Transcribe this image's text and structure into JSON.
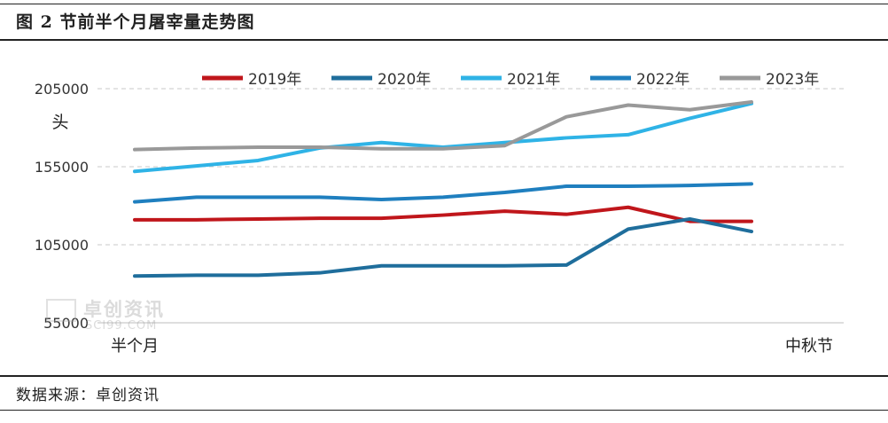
{
  "figure_title": "图 2 节前半个月屠宰量走势图",
  "source_note": "数据来源：卓创资讯",
  "watermark": {
    "main": "卓创资讯",
    "sub": "SCI99.COM"
  },
  "chart_data": {
    "type": "line",
    "title": "",
    "unit_label": "头",
    "x_start_label": "半个月",
    "x_end_label": "中秋节",
    "x": [
      1,
      2,
      3,
      4,
      5,
      6,
      7,
      8,
      9,
      10,
      11
    ],
    "ylim": [
      55000,
      205000
    ],
    "yticks": [
      55000,
      105000,
      155000,
      205000
    ],
    "grid": true,
    "legend_position": "top",
    "series": [
      {
        "name": "2019年",
        "color": "#c0161b",
        "values": [
          121000,
          121000,
          121500,
          122000,
          122000,
          124000,
          126500,
          124500,
          129000,
          120000,
          120000
        ]
      },
      {
        "name": "2020年",
        "color": "#1f6e9c",
        "values": [
          85000,
          85500,
          85500,
          87000,
          91500,
          91500,
          91500,
          92000,
          115000,
          121500,
          113500
        ]
      },
      {
        "name": "2021年",
        "color": "#2fb3e6",
        "values": [
          152000,
          155500,
          159000,
          167000,
          170500,
          167500,
          170500,
          173500,
          175500,
          186000,
          195500
        ]
      },
      {
        "name": "2022年",
        "color": "#1f7fbf",
        "values": [
          132500,
          135500,
          135500,
          135500,
          134000,
          135500,
          138500,
          142500,
          142500,
          143000,
          144000
        ]
      },
      {
        "name": "2023年",
        "color": "#999999",
        "values": [
          166000,
          167000,
          167500,
          167500,
          166500,
          166500,
          168500,
          187000,
          194500,
          191500,
          196500
        ]
      }
    ]
  }
}
